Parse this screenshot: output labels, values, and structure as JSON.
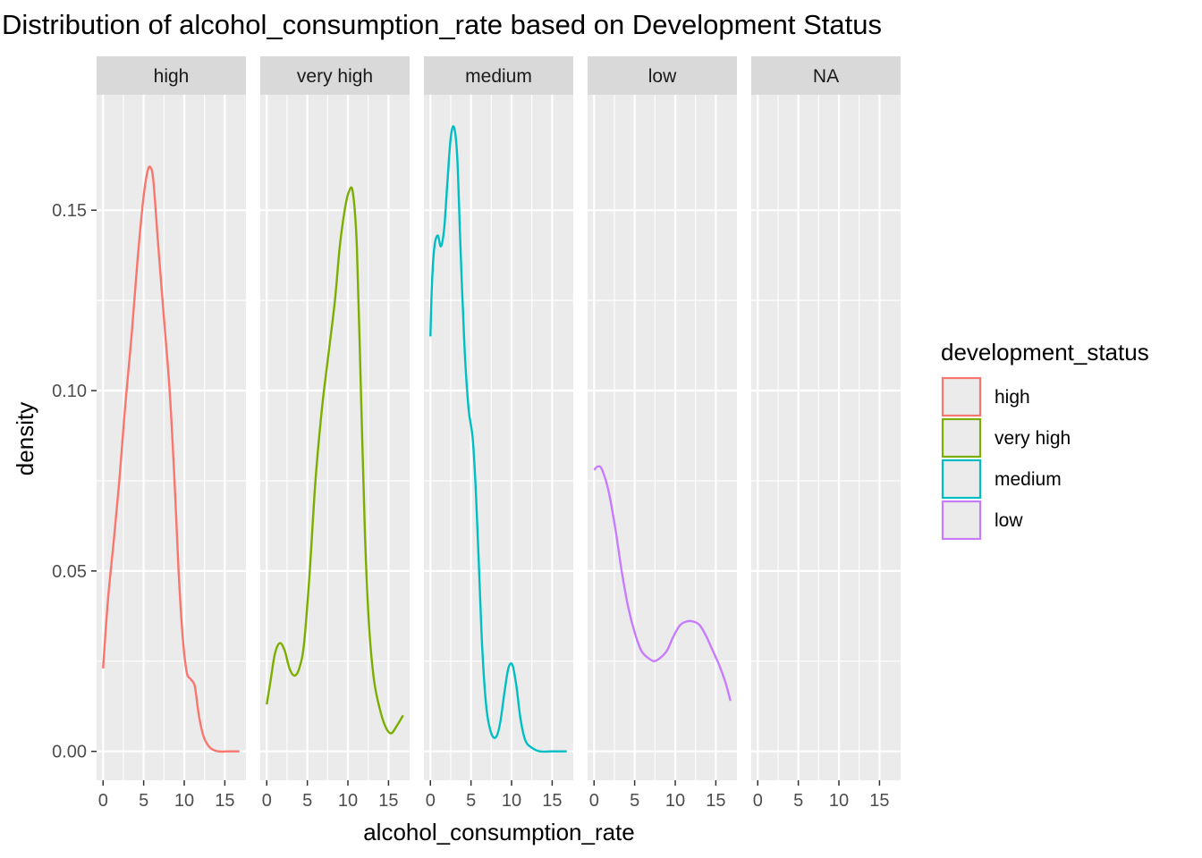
{
  "chart_data": {
    "type": "line",
    "title": "Distribution of alcohol_consumption_rate based on Development Status",
    "xlabel": "alcohol_consumption_rate",
    "ylabel": "density",
    "xlim": [
      -0.8,
      17.6
    ],
    "ylim": [
      -0.008,
      0.182
    ],
    "x_ticks": [
      0,
      5,
      10,
      15
    ],
    "x_tick_labels": [
      "0",
      "5",
      "10",
      "15"
    ],
    "y_ticks": [
      0,
      0.05,
      0.1,
      0.15
    ],
    "y_tick_labels": [
      "0.00",
      "0.05",
      "0.10",
      "0.15"
    ],
    "grid": true,
    "legend": {
      "title": "development_status",
      "position": "right"
    },
    "facets": [
      "high",
      "very high",
      "medium",
      "low",
      "NA"
    ],
    "series": [
      {
        "name": "high",
        "facet": 0,
        "color": "#F8766D",
        "points": [
          [
            0,
            0.023
          ],
          [
            0.6,
            0.042
          ],
          [
            1.3,
            0.058
          ],
          [
            2.0,
            0.075
          ],
          [
            2.7,
            0.095
          ],
          [
            3.5,
            0.115
          ],
          [
            4.2,
            0.135
          ],
          [
            4.9,
            0.152
          ],
          [
            5.4,
            0.16
          ],
          [
            5.8,
            0.162
          ],
          [
            6.2,
            0.158
          ],
          [
            6.8,
            0.14
          ],
          [
            7.5,
            0.12
          ],
          [
            8.2,
            0.1
          ],
          [
            8.8,
            0.075
          ],
          [
            9.3,
            0.05
          ],
          [
            9.8,
            0.032
          ],
          [
            10.3,
            0.022
          ],
          [
            10.8,
            0.02
          ],
          [
            11.3,
            0.018
          ],
          [
            11.8,
            0.01
          ],
          [
            12.4,
            0.004
          ],
          [
            13.2,
            0.001
          ],
          [
            14.2,
            0.0
          ],
          [
            15.5,
            0.0
          ],
          [
            16.8,
            0.0
          ]
        ]
      },
      {
        "name": "very high",
        "facet": 1,
        "color": "#7CAE00",
        "points": [
          [
            0,
            0.013
          ],
          [
            0.5,
            0.02
          ],
          [
            1.0,
            0.027
          ],
          [
            1.6,
            0.03
          ],
          [
            2.2,
            0.028
          ],
          [
            2.8,
            0.023
          ],
          [
            3.4,
            0.021
          ],
          [
            4.0,
            0.023
          ],
          [
            4.6,
            0.03
          ],
          [
            5.3,
            0.05
          ],
          [
            6.0,
            0.075
          ],
          [
            6.8,
            0.095
          ],
          [
            7.6,
            0.11
          ],
          [
            8.4,
            0.125
          ],
          [
            9.0,
            0.14
          ],
          [
            9.6,
            0.15
          ],
          [
            10.1,
            0.155
          ],
          [
            10.6,
            0.155
          ],
          [
            11.1,
            0.14
          ],
          [
            11.6,
            0.1
          ],
          [
            12.1,
            0.06
          ],
          [
            12.6,
            0.035
          ],
          [
            13.2,
            0.02
          ],
          [
            13.9,
            0.012
          ],
          [
            14.6,
            0.007
          ],
          [
            15.3,
            0.005
          ],
          [
            16.0,
            0.007
          ],
          [
            16.8,
            0.01
          ]
        ]
      },
      {
        "name": "medium",
        "facet": 2,
        "color": "#00BFC4",
        "points": [
          [
            0,
            0.115
          ],
          [
            0.2,
            0.13
          ],
          [
            0.5,
            0.14
          ],
          [
            0.9,
            0.143
          ],
          [
            1.3,
            0.14
          ],
          [
            1.7,
            0.145
          ],
          [
            2.1,
            0.158
          ],
          [
            2.5,
            0.17
          ],
          [
            2.9,
            0.173
          ],
          [
            3.3,
            0.165
          ],
          [
            3.7,
            0.14
          ],
          [
            4.2,
            0.112
          ],
          [
            4.7,
            0.095
          ],
          [
            5.2,
            0.087
          ],
          [
            5.6,
            0.072
          ],
          [
            6.0,
            0.05
          ],
          [
            6.4,
            0.028
          ],
          [
            6.9,
            0.012
          ],
          [
            7.5,
            0.005
          ],
          [
            8.1,
            0.004
          ],
          [
            8.6,
            0.008
          ],
          [
            9.1,
            0.016
          ],
          [
            9.6,
            0.023
          ],
          [
            10.1,
            0.024
          ],
          [
            10.6,
            0.018
          ],
          [
            11.1,
            0.009
          ],
          [
            11.7,
            0.003
          ],
          [
            12.5,
            0.001
          ],
          [
            13.5,
            0.0
          ],
          [
            15.0,
            0.0
          ],
          [
            16.8,
            0.0
          ]
        ]
      },
      {
        "name": "low",
        "facet": 3,
        "color": "#C77CFF",
        "points": [
          [
            0,
            0.078
          ],
          [
            0.5,
            0.079
          ],
          [
            1.0,
            0.078
          ],
          [
            1.8,
            0.072
          ],
          [
            2.6,
            0.062
          ],
          [
            3.4,
            0.05
          ],
          [
            4.2,
            0.04
          ],
          [
            5.0,
            0.033
          ],
          [
            5.8,
            0.028
          ],
          [
            6.6,
            0.026
          ],
          [
            7.4,
            0.025
          ],
          [
            8.2,
            0.026
          ],
          [
            9.0,
            0.028
          ],
          [
            9.8,
            0.032
          ],
          [
            10.6,
            0.035
          ],
          [
            11.4,
            0.036
          ],
          [
            12.2,
            0.036
          ],
          [
            13.0,
            0.035
          ],
          [
            13.8,
            0.032
          ],
          [
            14.6,
            0.028
          ],
          [
            15.4,
            0.024
          ],
          [
            16.2,
            0.019
          ],
          [
            16.8,
            0.014
          ]
        ]
      }
    ]
  }
}
